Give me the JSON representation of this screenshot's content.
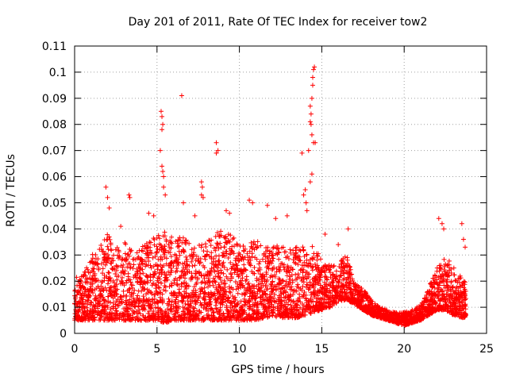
{
  "chart_data": {
    "type": "scatter",
    "title": "Day 201 of 2011, Rate Of TEC Index for receiver tow2",
    "xlabel": "GPS time / hours",
    "ylabel": "ROTI / TECUs",
    "xlim": [
      0,
      25
    ],
    "ylim": [
      0,
      0.11
    ],
    "xticks": [
      0,
      5,
      10,
      15,
      20,
      25
    ],
    "xtick_labels": [
      "0",
      "5",
      "10",
      "15",
      "20",
      "25"
    ],
    "yticks": [
      0,
      0.01,
      0.02,
      0.03,
      0.04,
      0.05,
      0.06,
      0.07,
      0.08,
      0.09,
      0.1,
      0.11
    ],
    "ytick_labels": [
      "0",
      "0.01",
      "0.02",
      "0.03",
      "0.04",
      "0.05",
      "0.06",
      "0.07",
      "0.08",
      "0.09",
      "0.1",
      "0.11"
    ],
    "grid": true,
    "marker": "+",
    "color": "#ff0000",
    "series": [
      {
        "name": "ROTI",
        "envelope": {
          "x": [
            0,
            0.5,
            1,
            1.5,
            2,
            2.5,
            3,
            3.5,
            4,
            4.5,
            5,
            5.5,
            6,
            6.5,
            7,
            7.5,
            8,
            8.5,
            9,
            9.5,
            10,
            10.5,
            11,
            11.5,
            12,
            12.5,
            13,
            13.5,
            14,
            14.5,
            15,
            15.5,
            16,
            16.5,
            17,
            17.5,
            18,
            18.5,
            19,
            19.5,
            20,
            20.5,
            21,
            21.5,
            22,
            22.5,
            23,
            23.5,
            23.75
          ],
          "low": [
            0.005,
            0.005,
            0.005,
            0.005,
            0.005,
            0.005,
            0.005,
            0.005,
            0.005,
            0.005,
            0.005,
            0.004,
            0.005,
            0.005,
            0.005,
            0.005,
            0.005,
            0.005,
            0.005,
            0.005,
            0.005,
            0.005,
            0.005,
            0.006,
            0.006,
            0.006,
            0.006,
            0.006,
            0.007,
            0.008,
            0.009,
            0.01,
            0.012,
            0.013,
            0.011,
            0.009,
            0.007,
            0.006,
            0.005,
            0.004,
            0.003,
            0.004,
            0.005,
            0.007,
            0.009,
            0.009,
            0.007,
            0.006,
            0.006
          ],
          "high": [
            0.022,
            0.022,
            0.03,
            0.033,
            0.038,
            0.033,
            0.035,
            0.034,
            0.033,
            0.035,
            0.038,
            0.04,
            0.038,
            0.037,
            0.035,
            0.034,
            0.036,
            0.038,
            0.04,
            0.038,
            0.035,
            0.034,
            0.036,
            0.033,
            0.033,
            0.034,
            0.032,
            0.034,
            0.033,
            0.034,
            0.028,
            0.026,
            0.027,
            0.03,
            0.019,
            0.017,
            0.013,
            0.01,
            0.009,
            0.008,
            0.008,
            0.009,
            0.011,
            0.018,
            0.026,
            0.03,
            0.026,
            0.022,
            0.02
          ]
        },
        "n_points": 4200,
        "outliers": [
          {
            "x": 1.9,
            "y": 0.056
          },
          {
            "x": 2.0,
            "y": 0.052
          },
          {
            "x": 2.1,
            "y": 0.048
          },
          {
            "x": 2.8,
            "y": 0.041
          },
          {
            "x": 3.3,
            "y": 0.053
          },
          {
            "x": 3.35,
            "y": 0.052
          },
          {
            "x": 4.5,
            "y": 0.046
          },
          {
            "x": 4.8,
            "y": 0.045
          },
          {
            "x": 5.25,
            "y": 0.085
          },
          {
            "x": 5.3,
            "y": 0.083
          },
          {
            "x": 5.35,
            "y": 0.08
          },
          {
            "x": 5.3,
            "y": 0.078
          },
          {
            "x": 5.2,
            "y": 0.07
          },
          {
            "x": 5.3,
            "y": 0.064
          },
          {
            "x": 5.35,
            "y": 0.062
          },
          {
            "x": 5.4,
            "y": 0.06
          },
          {
            "x": 5.4,
            "y": 0.056
          },
          {
            "x": 5.5,
            "y": 0.053
          },
          {
            "x": 6.5,
            "y": 0.091
          },
          {
            "x": 6.6,
            "y": 0.05
          },
          {
            "x": 7.3,
            "y": 0.045
          },
          {
            "x": 7.7,
            "y": 0.058
          },
          {
            "x": 7.75,
            "y": 0.056
          },
          {
            "x": 7.7,
            "y": 0.053
          },
          {
            "x": 7.8,
            "y": 0.052
          },
          {
            "x": 8.6,
            "y": 0.073
          },
          {
            "x": 8.6,
            "y": 0.069
          },
          {
            "x": 8.7,
            "y": 0.07
          },
          {
            "x": 9.2,
            "y": 0.047
          },
          {
            "x": 9.4,
            "y": 0.046
          },
          {
            "x": 10.6,
            "y": 0.051
          },
          {
            "x": 10.8,
            "y": 0.05
          },
          {
            "x": 11.7,
            "y": 0.049
          },
          {
            "x": 12.2,
            "y": 0.044
          },
          {
            "x": 12.9,
            "y": 0.045
          },
          {
            "x": 13.8,
            "y": 0.069
          },
          {
            "x": 13.9,
            "y": 0.053
          },
          {
            "x": 14.0,
            "y": 0.055
          },
          {
            "x": 14.05,
            "y": 0.05
          },
          {
            "x": 14.1,
            "y": 0.047
          },
          {
            "x": 14.2,
            "y": 0.07
          },
          {
            "x": 14.3,
            "y": 0.081
          },
          {
            "x": 14.35,
            "y": 0.084
          },
          {
            "x": 14.3,
            "y": 0.087
          },
          {
            "x": 14.4,
            "y": 0.09
          },
          {
            "x": 14.35,
            "y": 0.08
          },
          {
            "x": 14.4,
            "y": 0.076
          },
          {
            "x": 14.45,
            "y": 0.098
          },
          {
            "x": 14.5,
            "y": 0.101
          },
          {
            "x": 14.55,
            "y": 0.102
          },
          {
            "x": 14.45,
            "y": 0.095
          },
          {
            "x": 14.5,
            "y": 0.073
          },
          {
            "x": 14.6,
            "y": 0.073
          },
          {
            "x": 14.4,
            "y": 0.061
          },
          {
            "x": 14.3,
            "y": 0.058
          },
          {
            "x": 15.2,
            "y": 0.038
          },
          {
            "x": 16.0,
            "y": 0.034
          },
          {
            "x": 16.6,
            "y": 0.04
          },
          {
            "x": 22.1,
            "y": 0.044
          },
          {
            "x": 22.3,
            "y": 0.042
          },
          {
            "x": 22.4,
            "y": 0.04
          },
          {
            "x": 23.5,
            "y": 0.042
          },
          {
            "x": 23.6,
            "y": 0.036
          },
          {
            "x": 23.7,
            "y": 0.033
          }
        ]
      }
    ]
  }
}
